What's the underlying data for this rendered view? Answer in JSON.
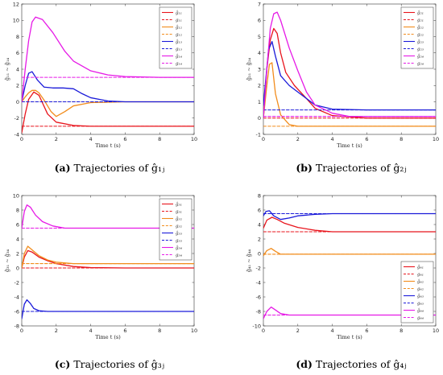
{
  "chart_data": [
    {
      "type": "line",
      "caption_letter": "(a)",
      "caption_text": "Trajectories of ĝ₁ⱼ",
      "xlabel": "Time t (s)",
      "ylabel": "ĝ₁₁ ~ ĝ₁₄",
      "xlim": [
        0,
        10
      ],
      "ylim": [
        -4,
        12
      ],
      "xticks": [
        0,
        2,
        4,
        6,
        8,
        10
      ],
      "yticks": [
        -4,
        -2,
        0,
        2,
        4,
        6,
        8,
        10,
        12
      ],
      "legend": "top-right",
      "series": [
        {
          "name": "ĝ₁₁",
          "color": "#e8141c",
          "dash": false,
          "x": [
            0,
            0.2,
            0.4,
            0.7,
            1,
            1.5,
            2,
            3,
            4,
            6,
            8,
            10
          ],
          "y": [
            -3.8,
            -1.5,
            0.3,
            1.2,
            0.8,
            -1.5,
            -2.5,
            -2.9,
            -3,
            -3,
            -3,
            -3
          ]
        },
        {
          "name": "g₁₁",
          "color": "#e8141c",
          "dash": true,
          "x": [
            0,
            10
          ],
          "y": [
            -3,
            -3
          ]
        },
        {
          "name": "ĝ₁₂",
          "color": "#f28c1c",
          "dash": false,
          "x": [
            0,
            0.2,
            0.4,
            0.6,
            0.8,
            1,
            1.3,
            1.7,
            2,
            2.5,
            3,
            4,
            6,
            10
          ],
          "y": [
            0,
            0.6,
            1.1,
            1.4,
            1.4,
            1.1,
            0.2,
            -1.2,
            -1.8,
            -1.2,
            -0.5,
            -0.1,
            0,
            0
          ]
        },
        {
          "name": "g₁₂",
          "color": "#f28c1c",
          "dash": true,
          "x": [
            0,
            10
          ],
          "y": [
            0,
            0
          ]
        },
        {
          "name": "ĝ₁₃",
          "color": "#1a1ad9",
          "dash": false,
          "x": [
            0,
            0.2,
            0.4,
            0.6,
            0.9,
            1.3,
            1.8,
            2.4,
            3,
            3.5,
            4,
            5,
            6,
            10
          ],
          "y": [
            0,
            2,
            3.5,
            3.7,
            2.7,
            1.8,
            1.7,
            1.7,
            1.6,
            1,
            0.5,
            0.1,
            0,
            0
          ]
        },
        {
          "name": "g₁₃",
          "color": "#1a1ad9",
          "dash": true,
          "x": [
            0,
            10
          ],
          "y": [
            0,
            0
          ]
        },
        {
          "name": "ĝ₁₄",
          "color": "#e619e6",
          "dash": false,
          "x": [
            0,
            0.2,
            0.4,
            0.6,
            0.8,
            1.2,
            1.8,
            2.5,
            3,
            4,
            5,
            6,
            8,
            10
          ],
          "y": [
            0,
            4,
            7.5,
            9.8,
            10.4,
            10.1,
            8.5,
            6.2,
            5,
            3.8,
            3.3,
            3.1,
            3,
            3
          ]
        },
        {
          "name": "g₁₄",
          "color": "#e619e6",
          "dash": true,
          "x": [
            0,
            10
          ],
          "y": [
            3,
            3
          ]
        }
      ]
    },
    {
      "type": "line",
      "caption_letter": "(b)",
      "caption_text": "Trajectories of ĝ₂ⱼ",
      "xlabel": "Time t (s)",
      "ylabel": "ĝ₂₁ ~ ĝ₂₄",
      "xlim": [
        0,
        10
      ],
      "ylim": [
        -1,
        7
      ],
      "xticks": [
        0,
        2,
        4,
        6,
        8,
        10
      ],
      "yticks": [
        -1,
        0,
        1,
        2,
        3,
        4,
        5,
        6,
        7
      ],
      "legend": "top-right",
      "series": [
        {
          "name": "ĝ₂₁",
          "color": "#e8141c",
          "dash": false,
          "x": [
            0,
            0.2,
            0.4,
            0.6,
            0.8,
            1,
            1.3,
            1.8,
            2.5,
            3,
            4,
            6,
            10
          ],
          "y": [
            0,
            3,
            4.8,
            5.5,
            5.2,
            4,
            2.8,
            2,
            1.2,
            0.6,
            0.15,
            0,
            0
          ]
        },
        {
          "name": "g₂₁",
          "color": "#e8141c",
          "dash": true,
          "x": [
            0,
            10
          ],
          "y": [
            0,
            0
          ]
        },
        {
          "name": "ĝ₂₂",
          "color": "#f28c1c",
          "dash": false,
          "x": [
            0,
            0.2,
            0.35,
            0.5,
            0.7,
            1,
            1.5,
            2,
            3,
            10
          ],
          "y": [
            0,
            2,
            3.3,
            3.4,
            1.5,
            0.2,
            -0.4,
            -0.5,
            -0.5,
            -0.5
          ]
        },
        {
          "name": "g₂₂",
          "color": "#f28c1c",
          "dash": true,
          "x": [
            0,
            10
          ],
          "y": [
            -0.5,
            -0.5
          ]
        },
        {
          "name": "ĝ₂₃",
          "color": "#1a1ad9",
          "dash": false,
          "x": [
            0,
            0.15,
            0.3,
            0.5,
            0.7,
            1,
            1.5,
            2,
            3,
            4,
            6,
            10
          ],
          "y": [
            0.8,
            2.5,
            4.2,
            4.7,
            3.8,
            2.6,
            2,
            1.6,
            0.8,
            0.55,
            0.5,
            0.5
          ]
        },
        {
          "name": "g₂₃",
          "color": "#1a1ad9",
          "dash": true,
          "x": [
            0,
            10
          ],
          "y": [
            0.5,
            0.5
          ]
        },
        {
          "name": "ĝ₂₄",
          "color": "#e619e6",
          "dash": false,
          "x": [
            0,
            0.2,
            0.4,
            0.6,
            0.8,
            1,
            1.5,
            2,
            2.5,
            3,
            4,
            5,
            6,
            10
          ],
          "y": [
            0,
            3,
            5.5,
            6.4,
            6.5,
            6,
            4.3,
            2.9,
            1.6,
            0.8,
            0.3,
            0.1,
            0.1,
            0.1
          ]
        },
        {
          "name": "g₂₄",
          "color": "#e619e6",
          "dash": true,
          "x": [
            0,
            10
          ],
          "y": [
            0.1,
            0.1
          ]
        }
      ]
    },
    {
      "type": "line",
      "caption_letter": "(c)",
      "caption_text": "Trajectories of ĝ₃ⱼ",
      "xlabel": "Time t (s)",
      "ylabel": "ĝ₃₁ ~ ĝ₃₄",
      "xlim": [
        0,
        10
      ],
      "ylim": [
        -8,
        10
      ],
      "xticks": [
        0,
        2,
        4,
        6,
        8,
        10
      ],
      "yticks": [
        -8,
        -6,
        -4,
        -2,
        0,
        2,
        4,
        6,
        8,
        10
      ],
      "legend": "top-right",
      "series": [
        {
          "name": "ĝ₃₁",
          "color": "#e8141c",
          "dash": false,
          "x": [
            0,
            0.15,
            0.35,
            0.6,
            1,
            1.5,
            2,
            3,
            4,
            6,
            10
          ],
          "y": [
            0,
            1.5,
            2.4,
            2.2,
            1.5,
            1,
            0.6,
            0.2,
            0.05,
            0,
            0
          ]
        },
        {
          "name": "g₃₁",
          "color": "#e8141c",
          "dash": true,
          "x": [
            0,
            10
          ],
          "y": [
            0,
            0
          ]
        },
        {
          "name": "ĝ₃₂",
          "color": "#f28c1c",
          "dash": false,
          "x": [
            0,
            0.15,
            0.35,
            0.6,
            1,
            1.5,
            2,
            3,
            10
          ],
          "y": [
            0,
            2,
            3,
            2.5,
            1.7,
            1.1,
            0.8,
            0.6,
            0.6
          ]
        },
        {
          "name": "g₃₂",
          "color": "#f28c1c",
          "dash": true,
          "x": [
            0,
            10
          ],
          "y": [
            0.6,
            0.6
          ]
        },
        {
          "name": "ĝ₃₃",
          "color": "#1a1ad9",
          "dash": false,
          "x": [
            0,
            0.15,
            0.3,
            0.5,
            0.7,
            1,
            1.5,
            2,
            10
          ],
          "y": [
            -7,
            -5,
            -4.4,
            -4.9,
            -5.6,
            -5.9,
            -6,
            -6,
            -6
          ]
        },
        {
          "name": "g₃₃",
          "color": "#1a1ad9",
          "dash": true,
          "x": [
            0,
            10
          ],
          "y": [
            -6,
            -6
          ]
        },
        {
          "name": "ĝ₃₄",
          "color": "#e619e6",
          "dash": false,
          "x": [
            0,
            0.15,
            0.3,
            0.5,
            0.8,
            1.2,
            1.8,
            2.5,
            4,
            10
          ],
          "y": [
            5.5,
            7.8,
            8.7,
            8.4,
            7.3,
            6.4,
            5.8,
            5.5,
            5.5,
            5.5
          ]
        },
        {
          "name": "g₃₄",
          "color": "#e619e6",
          "dash": true,
          "x": [
            0,
            10
          ],
          "y": [
            5.5,
            5.5
          ]
        }
      ]
    },
    {
      "type": "line",
      "caption_letter": "(d)",
      "caption_text": "Trajectories of ĝ₄ⱼ",
      "xlabel": "Time t (s)",
      "ylabel": "ĝ₄₁ ~ ĝ₄₄",
      "xlim": [
        0,
        10
      ],
      "ylim": [
        -10,
        8
      ],
      "xticks": [
        0,
        2,
        4,
        6,
        8,
        10
      ],
      "yticks": [
        -10,
        -8,
        -6,
        -4,
        -2,
        0,
        2,
        4,
        6,
        8
      ],
      "legend": "bottom-right",
      "series": [
        {
          "name": "ĝ₄₁",
          "color": "#e8141c",
          "dash": false,
          "x": [
            0,
            0.2,
            0.5,
            0.8,
            1.2,
            2,
            3,
            4,
            6,
            10
          ],
          "y": [
            3.5,
            4.6,
            5,
            4.7,
            4.2,
            3.6,
            3.2,
            3,
            3,
            3
          ]
        },
        {
          "name": "g₄₁",
          "color": "#e8141c",
          "dash": true,
          "x": [
            0,
            10
          ],
          "y": [
            3,
            3
          ]
        },
        {
          "name": "ĝ₄₂",
          "color": "#f28c1c",
          "dash": false,
          "x": [
            0,
            0.2,
            0.45,
            0.7,
            1,
            1.5,
            2,
            10
          ],
          "y": [
            -0.3,
            0.4,
            0.7,
            0.3,
            -0.1,
            -0.1,
            -0.1,
            -0.1
          ]
        },
        {
          "name": "g₄₂",
          "color": "#f28c1c",
          "dash": true,
          "x": [
            0,
            10
          ],
          "y": [
            -0.1,
            -0.1
          ]
        },
        {
          "name": "ĝ₄₃",
          "color": "#1a1ad9",
          "dash": false,
          "x": [
            0,
            0.15,
            0.35,
            0.6,
            1,
            1.5,
            2,
            3,
            4,
            10
          ],
          "y": [
            5.2,
            5.8,
            5.9,
            5.2,
            4.7,
            4.9,
            5.2,
            5.4,
            5.5,
            5.5
          ]
        },
        {
          "name": "g₄₃",
          "color": "#1a1ad9",
          "dash": true,
          "x": [
            0,
            10
          ],
          "y": [
            5.5,
            5.5
          ]
        },
        {
          "name": "ĝ₄₄",
          "color": "#e619e6",
          "dash": false,
          "x": [
            0,
            0.2,
            0.45,
            0.7,
            1,
            1.5,
            2,
            3,
            10
          ],
          "y": [
            -9,
            -8,
            -7.4,
            -7.8,
            -8.3,
            -8.5,
            -8.5,
            -8.5,
            -8.5
          ]
        },
        {
          "name": "g₄₄",
          "color": "#e619e6",
          "dash": true,
          "x": [
            0,
            10
          ],
          "y": [
            -8.5,
            -8.5
          ]
        }
      ]
    }
  ]
}
